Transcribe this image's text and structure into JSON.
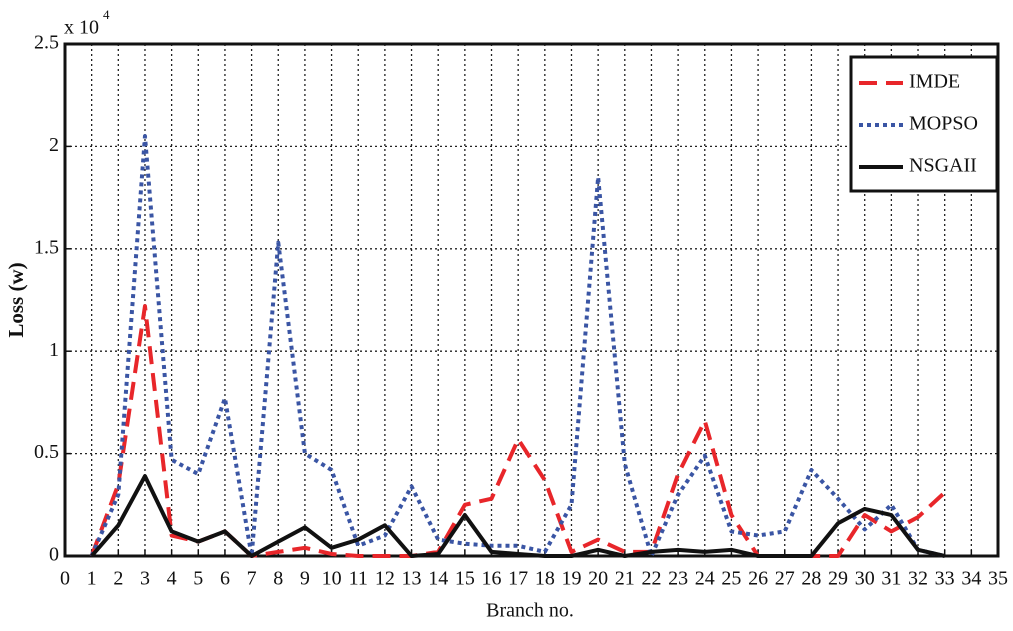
{
  "chart_data": {
    "type": "line",
    "x_label": "Branch no.",
    "y_label": "Loss (w)",
    "y_scale": {
      "base": "x 10",
      "exponent": "4"
    },
    "x": [
      1,
      2,
      3,
      4,
      5,
      6,
      7,
      8,
      9,
      10,
      11,
      12,
      13,
      14,
      15,
      16,
      17,
      18,
      19,
      20,
      21,
      22,
      23,
      24,
      25,
      26,
      27,
      28,
      29,
      30,
      31,
      32,
      33
    ],
    "series": [
      {
        "name": "IMDE",
        "color": "#e8262a",
        "dash": "18,9",
        "values": [
          0,
          0.35,
          1.22,
          0.1,
          0.07,
          0.12,
          0,
          0.02,
          0.04,
          0.01,
          0,
          0,
          0,
          0.02,
          0.25,
          0.28,
          0.57,
          0.37,
          0.02,
          0.08,
          0.02,
          0.02,
          0.4,
          0.66,
          0.2,
          0,
          0,
          0,
          0,
          0.2,
          0.12,
          0.19,
          0.31
        ]
      },
      {
        "name": "MOPSO",
        "color": "#3a55a4",
        "dash": "4,4",
        "values": [
          0,
          0.3,
          2.05,
          0.47,
          0.4,
          0.77,
          0,
          1.53,
          0.5,
          0.42,
          0.05,
          0.1,
          0.34,
          0.08,
          0.06,
          0.05,
          0.05,
          0.02,
          0.25,
          1.85,
          0.45,
          0,
          0.3,
          0.49,
          0.12,
          0.1,
          0.12,
          0.42,
          0.28,
          0.13,
          0.25,
          0.03,
          0
        ]
      },
      {
        "name": "NSGAII",
        "color": "#111111",
        "dash": "none",
        "values": [
          0,
          0.15,
          0.39,
          0.12,
          0.07,
          0.12,
          0,
          0.07,
          0.14,
          0.04,
          0.08,
          0.15,
          0,
          0.01,
          0.2,
          0.02,
          0.01,
          0,
          0,
          0.03,
          0,
          0.02,
          0.03,
          0.02,
          0.03,
          0,
          0,
          0,
          0.16,
          0.23,
          0.2,
          0.03,
          0
        ]
      }
    ],
    "xlim": [
      0,
      35
    ],
    "xticks": [
      0,
      1,
      2,
      3,
      4,
      5,
      6,
      7,
      8,
      9,
      10,
      11,
      12,
      13,
      14,
      15,
      16,
      17,
      18,
      19,
      20,
      21,
      22,
      23,
      24,
      25,
      26,
      27,
      28,
      29,
      30,
      31,
      32,
      33,
      34,
      35
    ],
    "ylim": [
      0,
      2.5
    ],
    "yticks": [
      0,
      0.5,
      1,
      1.5,
      2,
      2.5
    ],
    "grid": true,
    "legend": "top-right"
  }
}
